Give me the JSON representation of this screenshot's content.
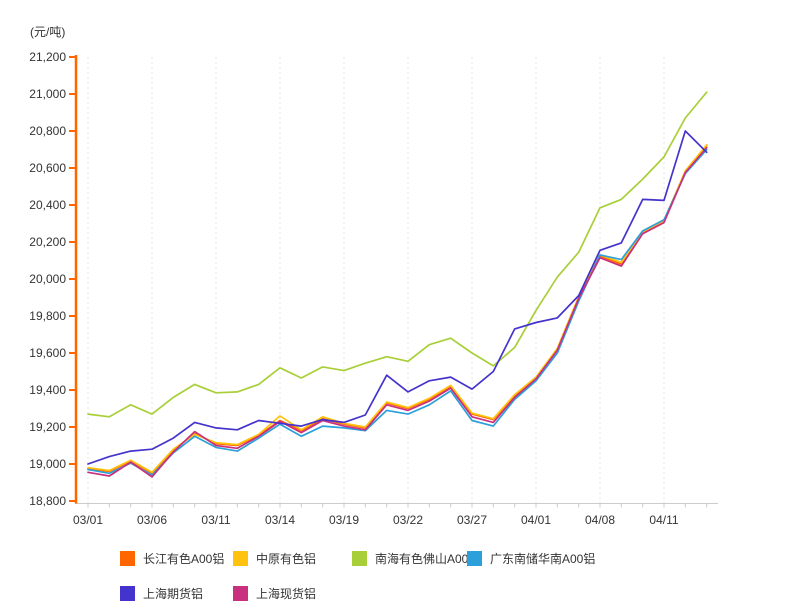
{
  "chart_data": {
    "type": "line",
    "title": "",
    "xlabel": "",
    "ylabel": "(元/吨)",
    "ylim": [
      18800,
      21200
    ],
    "y_tick_step": 200,
    "y_ticks_top_to_bottom": [
      "21,200",
      "21,000",
      "20,800",
      "20,600",
      "20,400",
      "20,200",
      "20,000",
      "19,800",
      "19,600",
      "19,400",
      "19,200",
      "19,000",
      "18,800"
    ],
    "x_tick_labels": [
      "03/01",
      "03/06",
      "03/11",
      "03/14",
      "03/19",
      "03/22",
      "03/27",
      "04/01",
      "04/08",
      "04/11"
    ],
    "x_tick_indices": [
      0,
      3,
      6,
      9,
      12,
      15,
      18,
      21,
      24,
      27
    ],
    "grid": "vertical-dotted",
    "legend_position": "bottom",
    "axis_colors": {
      "y_axis": "#ff6600",
      "x_axis": "#cccccc",
      "gridline": "#e4e4e4",
      "label_text": "#333333"
    },
    "series": [
      {
        "name": "长江有色A00铝",
        "color": "#ff6600",
        "values": [
          18975,
          18960,
          19015,
          18950,
          19075,
          19165,
          19110,
          19100,
          19155,
          19235,
          19180,
          19245,
          19215,
          19195,
          19330,
          19300,
          19350,
          19420,
          19270,
          19240,
          19370,
          19465,
          19620,
          19900,
          20125,
          20080,
          20250,
          20310,
          20580,
          20720
        ]
      },
      {
        "name": "中原有色铝",
        "color": "#ffc20e",
        "values": [
          18980,
          18965,
          19020,
          18955,
          19080,
          19160,
          19115,
          19105,
          19160,
          19260,
          19185,
          19255,
          19220,
          19200,
          19335,
          19305,
          19355,
          19425,
          19275,
          19245,
          19375,
          19470,
          19625,
          19905,
          20130,
          20090,
          20255,
          20315,
          20585,
          20725
        ]
      },
      {
        "name": "南海有色佛山A00铝",
        "color": "#a9cf38",
        "values": [
          19270,
          19255,
          19320,
          19270,
          19360,
          19430,
          19385,
          19390,
          19430,
          19520,
          19465,
          19525,
          19505,
          19545,
          19580,
          19555,
          19645,
          19680,
          19600,
          19530,
          19630,
          19830,
          20010,
          20145,
          20385,
          20430,
          20540,
          20660,
          20870,
          21010
        ]
      },
      {
        "name": "广东南储华南A00铝",
        "color": "#2ba0da",
        "values": [
          18970,
          18950,
          19005,
          18940,
          19060,
          19150,
          19090,
          19070,
          19140,
          19215,
          19150,
          19205,
          19195,
          19180,
          19290,
          19270,
          19320,
          19395,
          19235,
          19205,
          19350,
          19450,
          19600,
          19880,
          20130,
          20105,
          20260,
          20320,
          20570,
          20700
        ]
      },
      {
        "name": "上海现货铝",
        "color": "#c9307e",
        "values": [
          18955,
          18935,
          19010,
          18930,
          19065,
          19175,
          19100,
          19085,
          19150,
          19230,
          19170,
          19235,
          19205,
          19185,
          19320,
          19290,
          19340,
          19410,
          19255,
          19225,
          19360,
          19460,
          19615,
          19895,
          20115,
          20070,
          20245,
          20305,
          20575,
          20710
        ]
      },
      {
        "name": "上海期货铝",
        "color": "#4433cc",
        "values": [
          19000,
          19040,
          19070,
          19080,
          19140,
          19225,
          19195,
          19185,
          19235,
          19220,
          19205,
          19240,
          19225,
          19265,
          19480,
          19390,
          19450,
          19470,
          19405,
          19500,
          19730,
          19765,
          19790,
          19910,
          20155,
          20195,
          20430,
          20425,
          20800,
          20685
        ]
      }
    ],
    "legend_order": [
      "长江有色A00铝",
      "中原有色铝",
      "南海有色佛山A00铝",
      "广东南储华南A00铝",
      "上海期货铝",
      "上海现货铝"
    ]
  }
}
